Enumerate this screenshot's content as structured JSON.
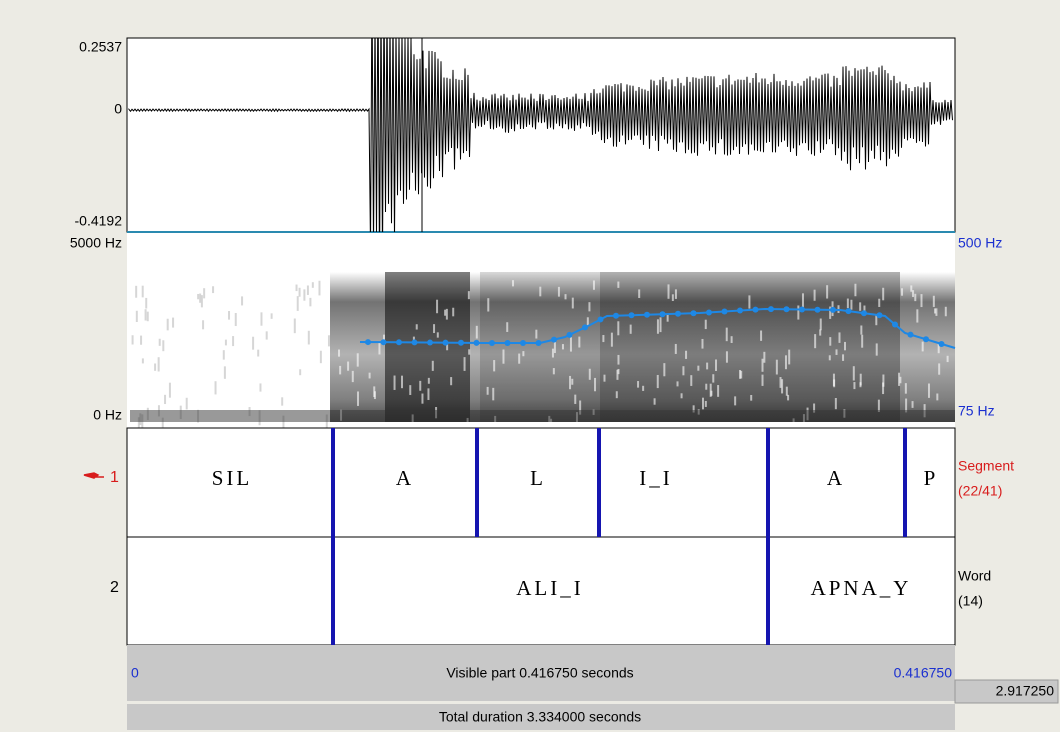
{
  "waveform": {
    "max": "0.2537",
    "zero": "0",
    "min": "-0.4192"
  },
  "spectrogram": {
    "top": "5000 Hz",
    "bottom": "0 Hz",
    "pitch_top": "500 Hz",
    "pitch_bottom": "75 Hz"
  },
  "tiers": [
    {
      "number": "1",
      "name": "Segment",
      "count": "(22/41)",
      "intervals": [
        "SIL",
        "A",
        "L",
        "I_I",
        "A",
        "P"
      ]
    },
    {
      "number": "2",
      "name": "Word",
      "count": "(14)",
      "intervals": [
        "ALI_I",
        "APNA_Y"
      ]
    }
  ],
  "visible": {
    "start": "0",
    "label": "Visible part 0.416750 seconds",
    "end": "0.416750",
    "right": "2.917250"
  },
  "total": "Total duration 3.334000 seconds"
}
